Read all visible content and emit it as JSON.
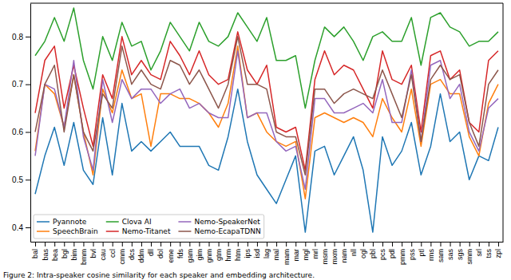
{
  "chart_data": {
    "type": "line",
    "caption": "Figure 2: Intra-speaker cosine similarity for each speaker and embedding architecture.",
    "categories": [
      "bal",
      "bas",
      "bea",
      "bgl",
      "bim",
      "bmm",
      "bvl",
      "cau",
      "ccl",
      "cmm",
      "dcs",
      "ddm",
      "dll",
      "dol",
      "eme",
      "fds",
      "gam",
      "gim",
      "gnm",
      "gtm",
      "hrm",
      "htm",
      "ips",
      "isd",
      "lag",
      "mal",
      "mam",
      "mar",
      "mgl",
      "mrl",
      "msm",
      "mxm",
      "nam",
      "nll",
      "ogl",
      "pbl",
      "pcs",
      "pdl",
      "pmm",
      "pss",
      "ptl",
      "rms",
      "sam",
      "sas",
      "sgs",
      "smm",
      "srl",
      "tss",
      "zpl"
    ],
    "series": [
      {
        "name": "Pyannote",
        "color": "#1f77b4",
        "values": [
          0.47,
          0.55,
          0.61,
          0.53,
          0.62,
          0.52,
          0.49,
          0.63,
          0.51,
          0.66,
          0.56,
          0.58,
          0.56,
          0.58,
          0.6,
          0.57,
          0.57,
          0.57,
          0.53,
          0.52,
          0.59,
          0.69,
          0.58,
          0.51,
          0.48,
          0.45,
          0.5,
          0.55,
          0.39,
          0.56,
          0.57,
          0.51,
          0.55,
          0.59,
          0.52,
          0.39,
          0.59,
          0.53,
          0.56,
          0.62,
          0.51,
          0.57,
          0.68,
          0.58,
          0.6,
          0.5,
          0.55,
          0.54,
          0.61
        ]
      },
      {
        "name": "SpeechBrain",
        "color": "#ff7f0e",
        "values": [
          0.56,
          0.7,
          0.68,
          0.61,
          0.72,
          0.6,
          0.51,
          0.69,
          0.64,
          0.73,
          0.67,
          0.68,
          0.57,
          0.68,
          0.68,
          0.67,
          0.67,
          0.66,
          0.64,
          0.61,
          0.66,
          0.78,
          0.63,
          0.64,
          0.6,
          0.58,
          0.57,
          0.58,
          0.46,
          0.63,
          0.64,
          0.63,
          0.62,
          0.63,
          0.62,
          0.59,
          0.67,
          0.63,
          0.6,
          0.69,
          0.57,
          0.7,
          0.71,
          0.68,
          0.68,
          0.59,
          0.55,
          0.66,
          0.7
        ]
      },
      {
        "name": "Clova AI",
        "color": "#2ca02c",
        "values": [
          0.76,
          0.79,
          0.84,
          0.79,
          0.86,
          0.75,
          0.69,
          0.8,
          0.75,
          0.83,
          0.78,
          0.79,
          0.73,
          0.77,
          0.83,
          0.8,
          0.77,
          0.83,
          0.79,
          0.78,
          0.8,
          0.85,
          0.82,
          0.79,
          0.84,
          0.75,
          0.75,
          0.76,
          0.65,
          0.75,
          0.82,
          0.8,
          0.82,
          0.79,
          0.75,
          0.8,
          0.81,
          0.79,
          0.79,
          0.84,
          0.74,
          0.84,
          0.85,
          0.82,
          0.81,
          0.78,
          0.79,
          0.79,
          0.81
        ]
      },
      {
        "name": "Nemo-Titanet",
        "color": "#d62728",
        "values": [
          0.64,
          0.75,
          0.78,
          0.65,
          0.74,
          0.65,
          0.57,
          0.72,
          0.67,
          0.8,
          0.72,
          0.75,
          0.72,
          0.71,
          0.79,
          0.76,
          0.72,
          0.77,
          0.72,
          0.7,
          0.71,
          0.81,
          0.73,
          0.7,
          0.74,
          0.61,
          0.6,
          0.61,
          0.52,
          0.71,
          0.77,
          0.72,
          0.74,
          0.73,
          0.69,
          0.65,
          0.77,
          0.71,
          0.7,
          0.74,
          0.6,
          0.76,
          0.77,
          0.71,
          0.73,
          0.62,
          0.6,
          0.75,
          0.77
        ]
      },
      {
        "name": "Nemo-SpeakerNet",
        "color": "#9467bd",
        "values": [
          0.55,
          0.7,
          0.69,
          0.61,
          0.75,
          0.59,
          0.52,
          0.71,
          0.62,
          0.71,
          0.67,
          0.69,
          0.69,
          0.66,
          0.68,
          0.69,
          0.65,
          0.66,
          0.64,
          0.63,
          0.63,
          0.77,
          0.63,
          0.64,
          0.64,
          0.58,
          0.56,
          0.57,
          0.48,
          0.67,
          0.67,
          0.64,
          0.64,
          0.65,
          0.66,
          0.64,
          0.71,
          0.62,
          0.62,
          0.73,
          0.58,
          0.74,
          0.75,
          0.67,
          0.7,
          0.6,
          0.56,
          0.65,
          0.67
        ]
      },
      {
        "name": "Nemo-EcapaTDNN",
        "color": "#8c564b",
        "values": [
          0.6,
          0.7,
          0.74,
          0.6,
          0.72,
          0.6,
          0.56,
          0.68,
          0.65,
          0.78,
          0.7,
          0.73,
          0.7,
          0.69,
          0.75,
          0.74,
          0.7,
          0.73,
          0.69,
          0.65,
          0.7,
          0.8,
          0.7,
          0.7,
          0.69,
          0.6,
          0.59,
          0.59,
          0.51,
          0.69,
          0.69,
          0.66,
          0.68,
          0.69,
          0.68,
          0.67,
          0.73,
          0.68,
          0.63,
          0.72,
          0.58,
          0.71,
          0.74,
          0.71,
          0.72,
          0.62,
          0.57,
          0.7,
          0.73
        ]
      }
    ],
    "ylim": [
      0.37,
      0.87
    ],
    "yticks": [
      0.4,
      0.5,
      0.6,
      0.7,
      0.8
    ],
    "grid": false,
    "legend": "lower left"
  }
}
